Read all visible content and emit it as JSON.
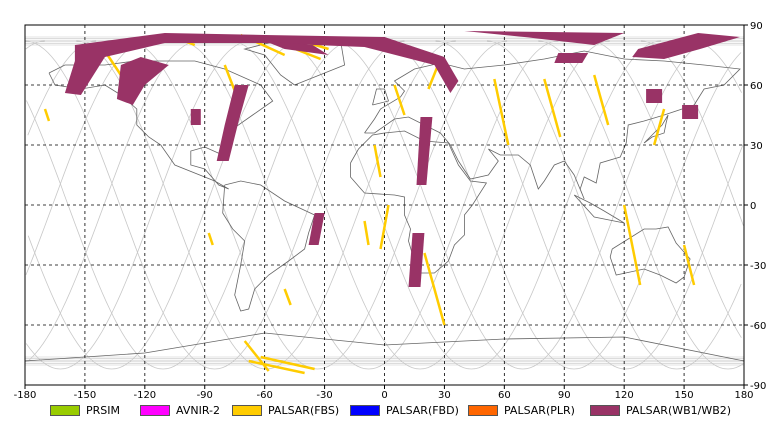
{
  "map": {
    "projection": "equirectangular",
    "lon_range": [
      -180,
      180
    ],
    "lat_range": [
      -90,
      90
    ],
    "grid": true,
    "x_ticks": [
      {
        "value": -180,
        "label": "-180"
      },
      {
        "value": -150,
        "label": "-150"
      },
      {
        "value": -120,
        "label": "-120"
      },
      {
        "value": -90,
        "label": "-90"
      },
      {
        "value": -60,
        "label": "-60"
      },
      {
        "value": -30,
        "label": "-30"
      },
      {
        "value": 0,
        "label": "0"
      },
      {
        "value": 30,
        "label": "30"
      },
      {
        "value": 60,
        "label": "60"
      },
      {
        "value": 90,
        "label": "90"
      },
      {
        "value": 120,
        "label": "120"
      },
      {
        "value": 150,
        "label": "150"
      },
      {
        "value": 180,
        "label": "180"
      }
    ],
    "y_ticks": [
      {
        "value": 90,
        "label": "90"
      },
      {
        "value": 60,
        "label": "60"
      },
      {
        "value": 30,
        "label": "30"
      },
      {
        "value": 0,
        "label": "0"
      },
      {
        "value": -30,
        "label": "-30"
      },
      {
        "value": -60,
        "label": "-60"
      },
      {
        "value": -90,
        "label": "-90"
      }
    ],
    "colors": {
      "grid": "#000000",
      "coast": "#666666",
      "orbit": "#c8c8c8",
      "fbs": "#ffcc00",
      "wb": "#993366"
    }
  },
  "legend": [
    {
      "label": "PRSIM",
      "color": "#99cc00"
    },
    {
      "label": "AVNIR-2",
      "color": "#ff00ff"
    },
    {
      "label": "PALSAR(FBS)",
      "color": "#ffcc00"
    },
    {
      "label": "PALSAR(FBD)",
      "color": "#0000ff"
    },
    {
      "label": "PALSAR(PLR)",
      "color": "#ff6600"
    },
    {
      "label": "PALSAR(WB1/WB2)",
      "color": "#993366"
    }
  ],
  "footprints": {
    "wb": [
      [
        [
          -155,
          80
        ],
        [
          -110,
          86
        ],
        [
          -60,
          85
        ],
        [
          0,
          84
        ],
        [
          30,
          74
        ],
        [
          37,
          62
        ],
        [
          33,
          56
        ],
        [
          25,
          70
        ],
        [
          -10,
          79
        ],
        [
          -60,
          81
        ],
        [
          -110,
          81
        ],
        [
          -140,
          74
        ],
        [
          -152,
          55
        ],
        [
          -160,
          56
        ],
        [
          -155,
          72
        ]
      ],
      [
        [
          -132,
          70
        ],
        [
          -122,
          74
        ],
        [
          -108,
          70
        ],
        [
          -120,
          60
        ],
        [
          -126,
          50
        ],
        [
          -134,
          53
        ]
      ],
      [
        [
          -75,
          60
        ],
        [
          -68,
          60
        ],
        [
          -73,
          42
        ],
        [
          -78,
          22
        ],
        [
          -84,
          22
        ],
        [
          -80,
          40
        ]
      ],
      [
        [
          -60,
          82
        ],
        [
          -36,
          80
        ],
        [
          -28,
          75
        ],
        [
          -50,
          78
        ]
      ],
      [
        [
          40,
          87
        ],
        [
          120,
          86
        ],
        [
          105,
          80
        ],
        [
          70,
          84
        ]
      ],
      [
        [
          127,
          78
        ],
        [
          157,
          86
        ],
        [
          178,
          84
        ],
        [
          158,
          78
        ],
        [
          140,
          73
        ],
        [
          124,
          74
        ]
      ],
      [
        [
          87,
          76
        ],
        [
          102,
          76
        ],
        [
          99,
          71
        ],
        [
          85,
          71
        ]
      ],
      [
        [
          18,
          44
        ],
        [
          24,
          44
        ],
        [
          21,
          10
        ],
        [
          16,
          10
        ]
      ],
      [
        [
          -97,
          48
        ],
        [
          -92,
          48
        ],
        [
          -92,
          40
        ],
        [
          -97,
          40
        ]
      ],
      [
        [
          131,
          58
        ],
        [
          139,
          58
        ],
        [
          139,
          51
        ],
        [
          131,
          51
        ]
      ],
      [
        [
          149,
          50
        ],
        [
          157,
          50
        ],
        [
          157,
          43
        ],
        [
          149,
          43
        ]
      ],
      [
        [
          -35,
          -4
        ],
        [
          -30,
          -4
        ],
        [
          -33,
          -20
        ],
        [
          -38,
          -20
        ]
      ],
      [
        [
          14,
          -14
        ],
        [
          20,
          -14
        ],
        [
          18,
          -41
        ],
        [
          12,
          -41
        ]
      ]
    ],
    "fbs_lines": [
      [
        [
          -142,
          80
        ],
        [
          -132,
          65
        ]
      ],
      [
        -115,
        80
      ],
      [
        [
          -108,
          85
        ],
        [
          -95,
          80
        ]
      ],
      [
        [
          -80,
          70
        ],
        [
          -73,
          52
        ]
      ],
      [
        [
          -72,
          85
        ],
        [
          -50,
          75
        ]
      ],
      [
        [
          -60,
          84
        ],
        [
          -32,
          73
        ]
      ],
      [
        [
          -48,
          84
        ],
        [
          -28,
          78
        ]
      ],
      [
        [
          5,
          60
        ],
        [
          10,
          45
        ]
      ],
      [
        [
          28,
          73
        ],
        [
          22,
          58
        ]
      ],
      [
        [
          -5,
          30
        ],
        [
          -2,
          14
        ]
      ],
      [
        [
          -10,
          -8
        ],
        [
          -8,
          -20
        ]
      ],
      [
        [
          2,
          0
        ],
        [
          -2,
          -22
        ]
      ],
      [
        [
          20,
          -24
        ],
        [
          30,
          -60
        ]
      ],
      [
        [
          -70,
          -68
        ],
        [
          -58,
          -83
        ]
      ],
      [
        [
          -62,
          -76
        ],
        [
          -35,
          -82
        ]
      ],
      [
        [
          -68,
          -78
        ],
        [
          -40,
          -84
        ]
      ],
      [
        [
          -50,
          -42
        ],
        [
          -47,
          -50
        ]
      ],
      [
        [
          55,
          63
        ],
        [
          62,
          30
        ]
      ],
      [
        [
          80,
          63
        ],
        [
          88,
          34
        ]
      ],
      [
        [
          105,
          65
        ],
        [
          112,
          40
        ]
      ],
      [
        [
          120,
          0
        ],
        [
          128,
          -40
        ]
      ],
      [
        [
          150,
          -20
        ],
        [
          155,
          -40
        ]
      ],
      [
        [
          140,
          48
        ],
        [
          135,
          30
        ]
      ],
      [
        [
          -88,
          -14
        ],
        [
          -86,
          -20
        ]
      ],
      [
        [
          -170,
          48
        ],
        [
          -168,
          42
        ]
      ]
    ]
  }
}
